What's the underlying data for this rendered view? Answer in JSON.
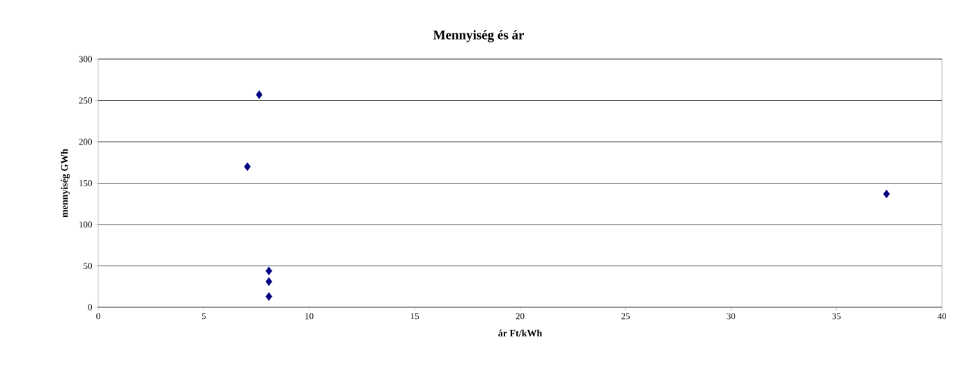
{
  "chart_data": {
    "type": "scatter",
    "title": "Mennyiség és ár",
    "xlabel": "ár Ft/kWh",
    "ylabel": "mennyiség GWh",
    "x": [
      7.63,
      7.07,
      8.09,
      8.09,
      8.09,
      37.37
    ],
    "values": [
      257,
      170,
      44,
      31,
      13,
      137
    ],
    "color": "#000080",
    "marker": "diamond",
    "xlim": [
      0,
      40
    ],
    "xticks": [
      0,
      5,
      10,
      15,
      20,
      25,
      30,
      35,
      40
    ],
    "ylim": [
      0,
      300
    ],
    "yticks": [
      0,
      50,
      100,
      150,
      200,
      250,
      300
    ],
    "grid": "y"
  }
}
